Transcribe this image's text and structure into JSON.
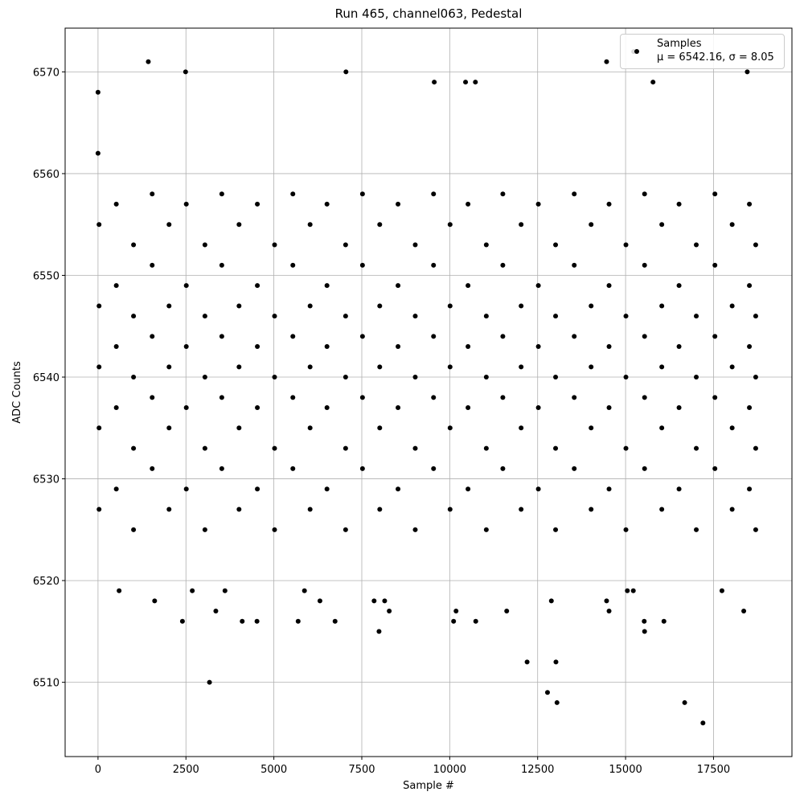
{
  "chart_data": {
    "type": "scatter",
    "title": "Run 465, channel063, Pedestal",
    "x_label": "Sample #",
    "y_label": "ADC Counts",
    "xlim": [
      -935,
      19730
    ],
    "ylim": [
      6502.7,
      6574.3
    ],
    "xticks": [
      0,
      2500,
      5000,
      7500,
      10000,
      12500,
      15000,
      17500
    ],
    "yticks": [
      6510,
      6520,
      6530,
      6540,
      6550,
      6560,
      6570
    ],
    "grid": true,
    "legend": "upper right",
    "x": [
      0,
      0,
      1430,
      2490,
      3170,
      7050,
      7990,
      12200,
      12780,
      13020,
      13050,
      16680,
      17200,
      14460,
      15230,
      18460,
      15540,
      9560,
      10450,
      10730,
      15780,
      2400,
      4100,
      4520,
      5690,
      6740,
      10110,
      10740,
      15530,
      16090,
      18360,
      11620,
      14530,
      3350,
      10180,
      8280,
      1610,
      6310,
      7850,
      8150,
      12890,
      14460,
      600,
      2680,
      3610,
      5870,
      15220,
      17740,
      15050,
      30,
      30,
      30,
      30,
      30,
      520,
      520,
      520,
      520,
      520,
      1010,
      1010,
      1010,
      1010,
      1010,
      1540,
      1540,
      1540,
      1540,
      1540,
      2020,
      2020,
      2020,
      2020,
      2020,
      2510,
      2510,
      2510,
      2510,
      2510,
      3040,
      3040,
      3040,
      3040,
      3040,
      3520,
      3520,
      3520,
      3520,
      3520,
      4010,
      4010,
      4010,
      4010,
      4010,
      4530,
      4530,
      4530,
      4530,
      4530,
      5020,
      5020,
      5020,
      5020,
      5020,
      5540,
      5540,
      5540,
      5540,
      5540,
      6030,
      6030,
      6030,
      6030,
      6030,
      6510,
      6510,
      6510,
      6510,
      6510,
      7040,
      7040,
      7040,
      7040,
      7040,
      7520,
      7520,
      7520,
      7520,
      7520,
      8010,
      8010,
      8010,
      8010,
      8010,
      8530,
      8530,
      8530,
      8530,
      8530,
      9020,
      9020,
      9020,
      9020,
      9020,
      9540,
      9540,
      9540,
      9540,
      9540,
      10010,
      10010,
      10010,
      10010,
      10010,
      10520,
      10520,
      10520,
      10520,
      10520,
      11040,
      11040,
      11040,
      11040,
      11040,
      11510,
      11510,
      11510,
      11510,
      11510,
      12030,
      12030,
      12030,
      12030,
      12030,
      12520,
      12520,
      12520,
      12520,
      12520,
      13010,
      13010,
      13010,
      13010,
      13010,
      13540,
      13540,
      13540,
      13540,
      13540,
      14020,
      14020,
      14020,
      14020,
      14020,
      14530,
      14530,
      14530,
      14530,
      14530,
      15010,
      15010,
      15010,
      15010,
      15010,
      15540,
      15540,
      15540,
      15540,
      15540,
      16030,
      16030,
      16030,
      16030,
      16030,
      16520,
      16520,
      16520,
      16520,
      16520,
      17010,
      17010,
      17010,
      17010,
      17010,
      17540,
      17540,
      17540,
      17540,
      17540,
      18030,
      18030,
      18030,
      18030,
      18030,
      18520,
      18520,
      18520,
      18520,
      18520,
      18700,
      18700,
      18700,
      18700,
      18700
    ],
    "series": [
      {
        "name": "Samples\nμ = 6542.16, σ = 8.05",
        "color": "#000000",
        "values": [
          6568,
          6562,
          6571,
          6570,
          6510,
          6570,
          6515,
          6512,
          6509,
          6512,
          6508,
          6508,
          6506,
          6571,
          6572,
          6570,
          6515,
          6569,
          6569,
          6569,
          6569,
          6516,
          6516,
          6516,
          6516,
          6516,
          6516,
          6516,
          6516,
          6516,
          6517,
          6517,
          6517,
          6517,
          6517,
          6517,
          6518,
          6518,
          6518,
          6518,
          6518,
          6518,
          6519,
          6519,
          6519,
          6519,
          6519,
          6519,
          6519,
          6527,
          6535,
          6541,
          6547,
          6555,
          6529,
          6537,
          6543,
          6549,
          6557,
          6525,
          6533,
          6540,
          6546,
          6553,
          6531,
          6538,
          6544,
          6551,
          6558,
          6527,
          6535,
          6541,
          6547,
          6555,
          6529,
          6537,
          6543,
          6549,
          6557,
          6525,
          6533,
          6540,
          6546,
          6553,
          6531,
          6538,
          6544,
          6551,
          6558,
          6527,
          6535,
          6541,
          6547,
          6555,
          6529,
          6537,
          6543,
          6549,
          6557,
          6525,
          6533,
          6540,
          6546,
          6553,
          6531,
          6538,
          6544,
          6551,
          6558,
          6527,
          6535,
          6541,
          6547,
          6555,
          6529,
          6537,
          6543,
          6549,
          6557,
          6525,
          6533,
          6540,
          6546,
          6553,
          6531,
          6538,
          6544,
          6551,
          6558,
          6527,
          6535,
          6541,
          6547,
          6555,
          6529,
          6537,
          6543,
          6549,
          6557,
          6525,
          6533,
          6540,
          6546,
          6553,
          6531,
          6538,
          6544,
          6551,
          6558,
          6527,
          6535,
          6541,
          6547,
          6555,
          6529,
          6537,
          6543,
          6549,
          6557,
          6525,
          6533,
          6540,
          6546,
          6553,
          6531,
          6538,
          6544,
          6551,
          6558,
          6527,
          6535,
          6541,
          6547,
          6555,
          6529,
          6537,
          6543,
          6549,
          6557,
          6525,
          6533,
          6540,
          6546,
          6553,
          6531,
          6538,
          6544,
          6551,
          6558,
          6527,
          6535,
          6541,
          6547,
          6555,
          6529,
          6537,
          6543,
          6549,
          6557,
          6525,
          6533,
          6540,
          6546,
          6553,
          6531,
          6538,
          6544,
          6551,
          6558,
          6527,
          6535,
          6541,
          6547,
          6555,
          6529,
          6537,
          6543,
          6549,
          6557,
          6525,
          6533,
          6540,
          6546,
          6553,
          6531,
          6538,
          6544,
          6551,
          6558,
          6527,
          6535,
          6541,
          6547,
          6555,
          6529,
          6537,
          6543,
          6549,
          6557,
          6525,
          6533,
          6540,
          6546,
          6553
        ]
      }
    ]
  }
}
